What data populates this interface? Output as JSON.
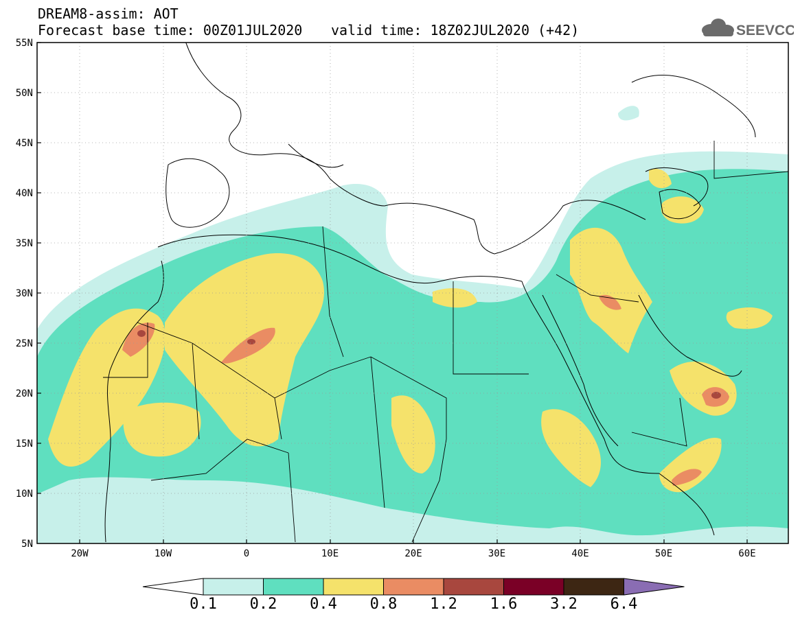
{
  "header": {
    "title_line1": "DREAM8-assim: AOT",
    "title_line2": "Forecast base time: 00Z01JUL2020",
    "valid_time": "valid time: 18Z02JUL2020 (+42)"
  },
  "logo": {
    "text": "SEEVCCC",
    "icon": "cloud-icon"
  },
  "axes": {
    "lat_labels": [
      "55N",
      "50N",
      "45N",
      "40N",
      "35N",
      "30N",
      "25N",
      "20N",
      "15N",
      "10N",
      "5N"
    ],
    "lon_labels": [
      "20W",
      "10W",
      "0",
      "10E",
      "20E",
      "30E",
      "40E",
      "50E",
      "60E"
    ]
  },
  "colorbar": {
    "labels": [
      "0.1",
      "0.2",
      "0.4",
      "0.8",
      "1.2",
      "1.6",
      "3.2",
      "6.4"
    ],
    "colors": [
      "#ffffff",
      "#c7f0ea",
      "#5fdfbf",
      "#f5e26b",
      "#ea8c63",
      "#a8473e",
      "#7a0026",
      "#3d2613",
      "#8a6db3"
    ]
  },
  "map_colors": {
    "low": "#c7f0ea",
    "mid": "#5fdfbf",
    "high": "#f5e26b",
    "vhigh": "#ea8c63",
    "ext": "#a8473e"
  }
}
